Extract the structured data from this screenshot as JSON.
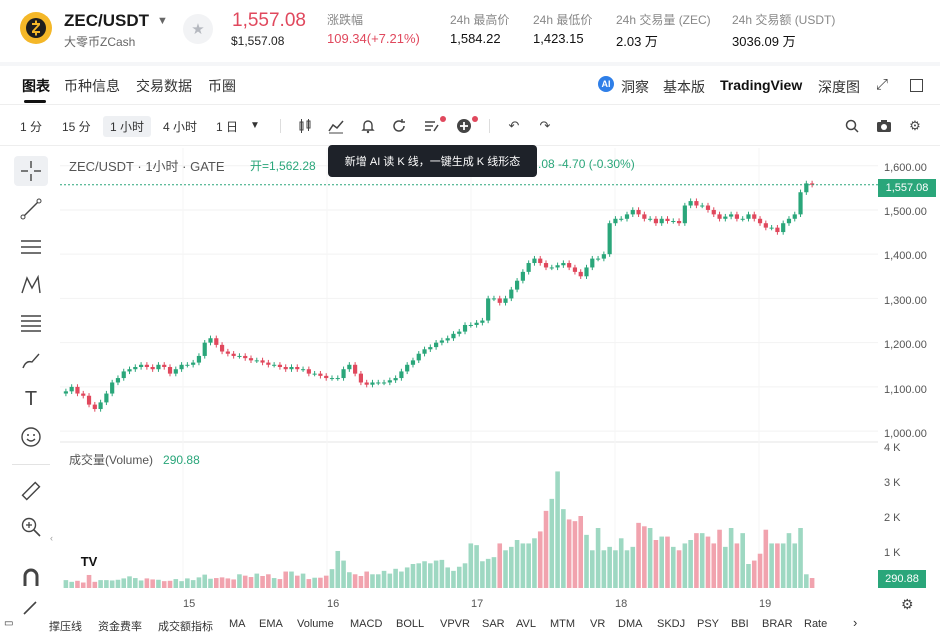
{
  "header": {
    "symbol": "ZEC/USDT",
    "name": "大零币ZCash",
    "last_price": "1,557.08",
    "last_price_usd": "$1,557.08",
    "change_label": "涨跌幅",
    "change_value": "109.34(+7.21%)",
    "high_label": "24h 最高价",
    "high_value": "1,584.22",
    "low_label": "24h 最低价",
    "low_value": "1,423.15",
    "vol_label": "24h 交易量 (ZEC)",
    "vol_value": "2.03 万",
    "amount_label": "24h 交易额 (USDT)",
    "amount_value": "3036.09 万"
  },
  "tabs": [
    "图表",
    "币种信息",
    "交易数据",
    "币圈"
  ],
  "right_tabs": {
    "insight": "洞察",
    "basic": "基本版",
    "tradingview": "TradingView",
    "depth": "深度图"
  },
  "timeframes": [
    "1 分",
    "15 分",
    "1 小时",
    "4 小时",
    "1 日"
  ],
  "active_timeframe": "1 小时",
  "chart_title": "ZEC/USDT · 1小时 · GATE",
  "ohl_text": "开=1,562.28",
  "ohl_tail": ".08  -4.70 (-0.30%)",
  "tooltip": "新增 AI 读 K 线，一键生成 K 线形态",
  "volume_label": "成交量(Volume)",
  "volume_value": "290.88",
  "price_tag": "1,557.08",
  "volume_tag": "290.88",
  "y_ticks": [
    "1,600.00",
    "1,500.00",
    "1,400.00",
    "1,300.00",
    "1,200.00",
    "1,100.00",
    "1,000.00"
  ],
  "vol_ticks": [
    "4 K",
    "3 K",
    "2 K",
    "1 K"
  ],
  "x_ticks": [
    "15",
    "16",
    "17",
    "18",
    "19"
  ],
  "indicators": [
    "撑压线",
    "资金费率",
    "成交额指标",
    "MA",
    "EMA",
    "Volume",
    "MACD",
    "BOLL",
    "VPVR",
    "SAR",
    "AVL",
    "MTM",
    "VR",
    "DMA",
    "SKDJ",
    "PSY",
    "BBI",
    "BRAR",
    "Rate"
  ],
  "colors": {
    "up": "#2aa67a",
    "down": "#e0485d",
    "up_vol": "#9ed8c2",
    "down_vol": "#f1a3ae"
  },
  "chart_data": {
    "type": "candlestick",
    "title": "ZEC/USDT · 1小时 · GATE",
    "ylim": [
      1000,
      1620
    ],
    "x_ticks": [
      "15",
      "16",
      "17",
      "18",
      "19"
    ],
    "closes": [
      1090,
      1100,
      1085,
      1080,
      1060,
      1050,
      1065,
      1085,
      1110,
      1120,
      1135,
      1140,
      1145,
      1150,
      1145,
      1140,
      1150,
      1145,
      1130,
      1140,
      1150,
      1150,
      1155,
      1170,
      1200,
      1210,
      1195,
      1180,
      1175,
      1170,
      1170,
      1165,
      1160,
      1160,
      1155,
      1150,
      1150,
      1145,
      1140,
      1145,
      1140,
      1140,
      1130,
      1130,
      1125,
      1120,
      1120,
      1120,
      1140,
      1150,
      1130,
      1110,
      1105,
      1110,
      1110,
      1110,
      1115,
      1120,
      1135,
      1150,
      1160,
      1175,
      1185,
      1190,
      1200,
      1205,
      1210,
      1220,
      1225,
      1240,
      1240,
      1245,
      1250,
      1300,
      1300,
      1290,
      1300,
      1320,
      1340,
      1360,
      1380,
      1390,
      1380,
      1370,
      1370,
      1375,
      1380,
      1370,
      1360,
      1350,
      1370,
      1390,
      1390,
      1400,
      1470,
      1480,
      1480,
      1490,
      1500,
      1490,
      1480,
      1480,
      1470,
      1480,
      1475,
      1475,
      1470,
      1510,
      1520,
      1510,
      1510,
      1500,
      1490,
      1480,
      1485,
      1490,
      1480,
      1480,
      1490,
      1480,
      1470,
      1460,
      1460,
      1450,
      1470,
      1480,
      1490,
      1540,
      1560,
      1557
    ],
    "volumes": [
      230,
      180,
      210,
      160,
      380,
      180,
      230,
      230,
      220,
      240,
      280,
      340,
      290,
      220,
      280,
      250,
      240,
      200,
      210,
      260,
      200,
      280,
      230,
      310,
      390,
      270,
      290,
      310,
      280,
      250,
      400,
      360,
      320,
      420,
      350,
      400,
      290,
      260,
      480,
      480,
      360,
      420,
      260,
      300,
      300,
      360,
      550,
      1080,
      800,
      460,
      400,
      350,
      480,
      400,
      400,
      500,
      420,
      560,
      480,
      600,
      700,
      720,
      780,
      720,
      800,
      820,
      600,
      500,
      620,
      720,
      1300,
      1250,
      780,
      850,
      900,
      1300,
      1100,
      1200,
      1400,
      1300,
      1300,
      1450,
      1650,
      2250,
      2600,
      3400,
      2300,
      2000,
      1950,
      2100,
      1550,
      1100,
      1750,
      1100,
      1200,
      1100,
      1450,
      1100,
      1200,
      1900,
      1800,
      1750,
      1400,
      1500,
      1500,
      1200,
      1100,
      1300,
      1400,
      1600,
      1600,
      1500,
      1300,
      1700,
      1200,
      1750,
      1300,
      1600,
      700,
      800,
      1000,
      1700,
      1300,
      1300,
      1300,
      1600,
      1300,
      1750,
      400,
      290.88
    ]
  }
}
